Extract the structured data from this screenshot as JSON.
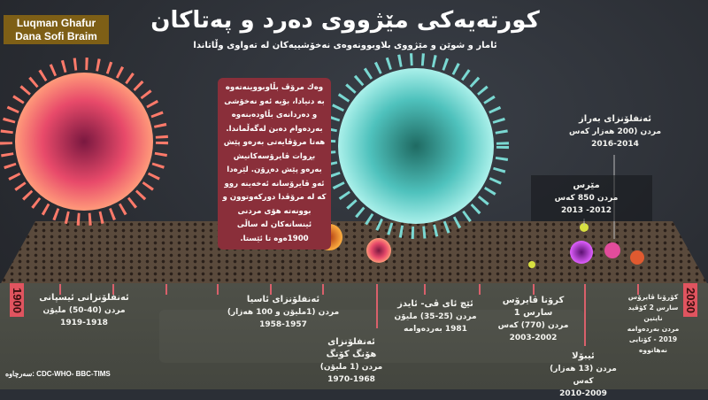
{
  "credit": {
    "line1": "Luqman Ghafur",
    "line2": "Dana Sofi Braim"
  },
  "title": "کورتەیەکی مێژووی دەرد و پەتاکان",
  "subtitle": "ئامار و شوێن و مێژووی بلاوبوونەوەی نەخۆشییەکان لە تەواوی وڵاتاندا",
  "intro": "وەك مرۆڤ بڵاوبووینەتەوە بە دنیادا، بۆیە ئەو نەخۆشی و دەردانەی بڵاودەبنەوە بەردەوام دەبن لەگەڵماندا. هەتا مرۆڤایەتی بەرەو پێش بڕوات ڤایرۆسەکانیش بەرەو پێش دەڕۆن. لێرەدا ئەو ڤایرۆسانە ئەخەینە روو کە لە مرۆڤدا دورکەوتوون و بوونەتە هۆی مردنی ئینسانەکان لە ساڵی 1900ەوە تا ئێستا.",
  "timeline": {
    "start": "1900",
    "end": "2030"
  },
  "watermark": "Luqman Ghafur",
  "events": [
    {
      "name": "ئەنفلۆنزانی ئیسپانی",
      "deaths": "مردن (40-50) ملیۆن",
      "years": "1919-1918"
    },
    {
      "name": "ئەنفلۆنزای ئاسیا",
      "deaths": "مردن (1ملیۆن و 100 هەزار)",
      "years": "1958-1957"
    },
    {
      "name": "ئەنفلۆنزای هۆنگ کۆنگ",
      "deaths": "مردن (1 ملیۆن)",
      "years": "1970-1968"
    },
    {
      "name": "ئێچ ئای ڤی- ئایدز",
      "deaths": "مردن (25-35) ملیۆن",
      "years": "1981 بەردەوامە"
    },
    {
      "name": "کرۆنا ڤایرۆس سارس 1",
      "deaths": "مردن (770) کەس",
      "years": "2003-2002"
    },
    {
      "name": "ئیبۆلا",
      "deaths": "مردن (13 هەزار) کەس",
      "years": "2010-2009"
    },
    {
      "name": "کۆرۆنا ڤایرۆس سارس 2 کۆڤید نایتین",
      "deaths": "مردن بەردەوامە",
      "years": "2019 - کۆتایی نەهاتووە"
    },
    {
      "name": "مێرس",
      "deaths": "مردن 850 کەس",
      "years": "2012- 2013"
    },
    {
      "name": "ئەنفلۆنزای بەراز",
      "deaths": "مردن (200 هەزار کەس",
      "years": "2016-2014"
    }
  ],
  "source": "سەرچاوە: CDC-WHO- BBC-TIMS",
  "colors": {
    "accent_red": "#e0545f",
    "textbox": "#8a2f3a",
    "credit_bg": "#7e5f16"
  }
}
